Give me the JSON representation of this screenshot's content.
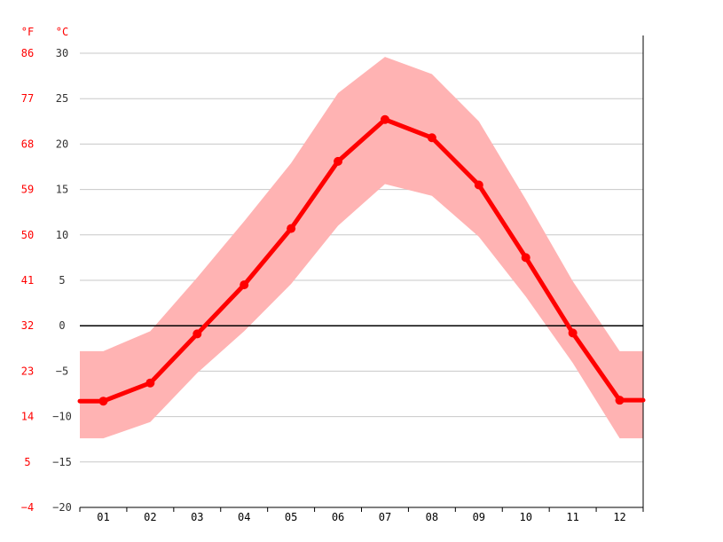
{
  "chart_data": {
    "type": "line",
    "x": [
      "01",
      "02",
      "03",
      "04",
      "05",
      "06",
      "07",
      "08",
      "09",
      "10",
      "11",
      "12"
    ],
    "series": [
      {
        "values": [
          -8.3,
          -6.3,
          -0.9,
          4.5,
          10.7,
          18.1,
          22.7,
          20.7,
          15.5,
          7.5,
          -0.8,
          -8.2
        ]
      }
    ],
    "band_max": [
      -2.8,
      -0.6,
      5.3,
      11.5,
      17.9,
      25.6,
      29.6,
      27.7,
      22.5,
      13.9,
      4.9,
      -2.8
    ],
    "band_min": [
      -12.4,
      -10.6,
      -5.2,
      -0.6,
      4.6,
      11.0,
      15.6,
      14.3,
      9.8,
      3.2,
      -4.1,
      -12.4
    ],
    "ylim": [
      -20,
      30
    ],
    "yticks_c": [
      "30",
      "25",
      "20",
      "15",
      "10",
      "5",
      "0",
      "−5",
      "−10",
      "−15",
      "−20"
    ],
    "yticks_f": [
      "86",
      "77",
      "68",
      "59",
      "50",
      "41",
      "32",
      "23",
      "14",
      "5",
      "−4"
    ],
    "ylabel_f": "°F",
    "ylabel_c": "°C",
    "grid": true,
    "colors": {
      "line": "#ff0000",
      "band": "#ffb3b3",
      "ticks_f": "#ff0000",
      "zero_line": "#000000"
    }
  }
}
